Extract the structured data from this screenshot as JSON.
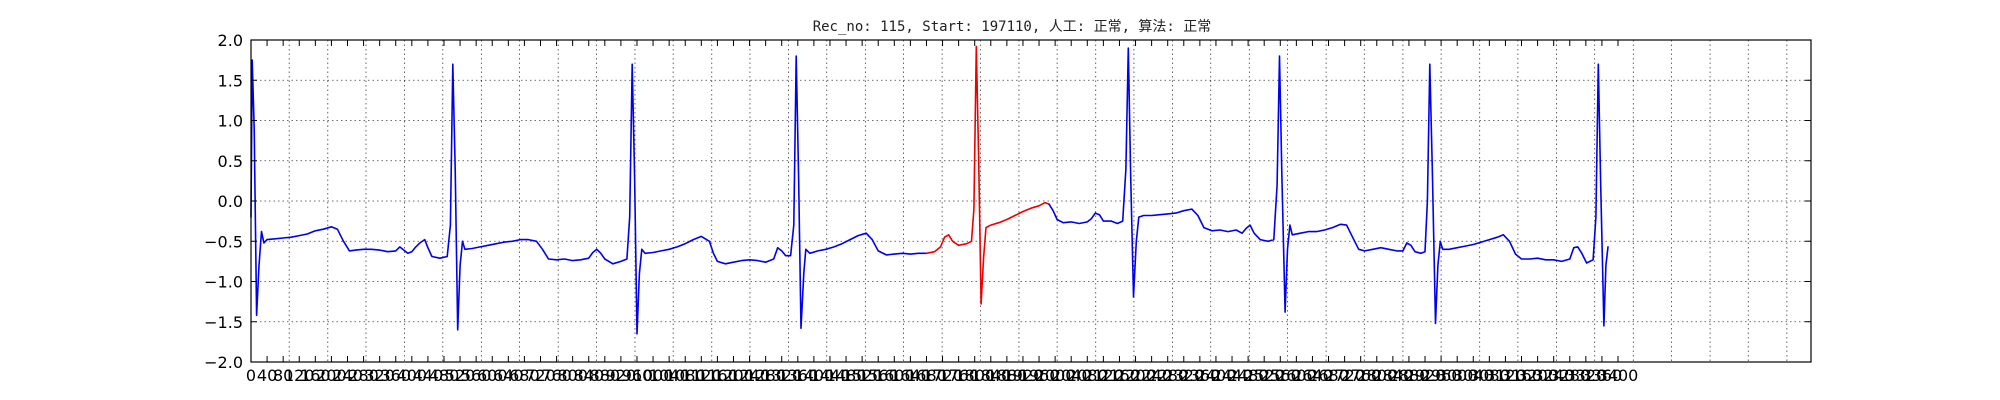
{
  "chart_data": {
    "type": "line",
    "title": "Rec_no: 115, Start: 197110, 人工: 正常, 算法: 正常",
    "xlabel": "",
    "ylabel": "",
    "xlim": [
      0,
      3880
    ],
    "ylim": [
      -2.0,
      2.0
    ],
    "grid": true,
    "yticks": [
      -2.0,
      -1.5,
      -1.0,
      -0.5,
      0.0,
      0.5,
      1.0,
      1.5,
      2.0
    ],
    "ytick_labels": [
      "−2.0",
      "−1.5",
      "−1.0",
      "−0.5",
      "0.0",
      "0.5",
      "1.0",
      "1.5",
      "2.0"
    ],
    "xticks": [
      0,
      40,
      80,
      120,
      160,
      200,
      240,
      280,
      320,
      360,
      400,
      440,
      480,
      520,
      560,
      600,
      640,
      680,
      720,
      760,
      800,
      840,
      880,
      920,
      960,
      1000,
      1040,
      1080,
      1120,
      1160,
      1200,
      1240,
      1280,
      1320,
      1360,
      1400,
      1440,
      1480,
      1520,
      1560,
      1600,
      1640,
      1680,
      1720,
      1760,
      1800,
      1840,
      1880,
      1920,
      1960,
      2000,
      2040,
      2080,
      2120,
      2160,
      2200,
      2240,
      2280,
      2320,
      2360,
      2400,
      2440,
      2480,
      2520,
      2560,
      2600,
      2640,
      2680,
      2720,
      2760,
      2800,
      2840,
      2880,
      2920,
      2960,
      3000,
      3040,
      3080,
      3120,
      3160,
      3200,
      3240,
      3280,
      3320,
      3360,
      3400
    ],
    "xtick_labels": [
      "0",
      "40",
      "80",
      "120",
      "160",
      "200",
      "240",
      "280",
      "320",
      "360",
      "400",
      "440",
      "480",
      "520",
      "560",
      "600",
      "640",
      "680",
      "720",
      "760",
      "800",
      "840",
      "880",
      "920",
      "960",
      "1000",
      "1040",
      "1080",
      "1120",
      "1160",
      "1200",
      "1240",
      "1280",
      "1320",
      "1360",
      "1400",
      "1440",
      "1480",
      "1520",
      "1560",
      "1600",
      "1640",
      "1680",
      "1720",
      "1760",
      "1800",
      "1840",
      "1880",
      "1920",
      "1960",
      "2000",
      "2040",
      "2080",
      "2120",
      "2160",
      "2200",
      "2240",
      "2280",
      "2320",
      "2360",
      "2400",
      "2440",
      "2480",
      "2520",
      "2560",
      "2600",
      "2640",
      "2680",
      "2720",
      "2760",
      "2800",
      "2840",
      "2880",
      "2920",
      "2960",
      "3000",
      "3040",
      "3080",
      "3120",
      "3160",
      "3200",
      "3240",
      "3280",
      "3320",
      "3360",
      "3400"
    ],
    "xgrid": [
      0,
      95,
      191,
      286,
      382,
      477,
      573,
      668,
      764,
      859,
      955,
      1050,
      1146,
      1241,
      1337,
      1432,
      1528,
      1623,
      1719,
      1814,
      1910,
      2005,
      2101,
      2196,
      2292,
      2387,
      2483,
      2578,
      2674,
      2769,
      2865,
      2960,
      3056,
      3151,
      3247,
      3342,
      3438,
      3533,
      3629,
      3724,
      3820
    ],
    "series": [
      {
        "color": "#0000ee",
        "points": [
          [
            0,
            -0.2
          ],
          [
            3,
            1.75
          ],
          [
            8,
            0.9
          ],
          [
            14,
            -1.42
          ],
          [
            20,
            -0.8
          ],
          [
            26,
            -0.38
          ],
          [
            32,
            -0.52
          ],
          [
            40,
            -0.48
          ],
          [
            60,
            -0.47
          ],
          [
            80,
            -0.46
          ],
          [
            100,
            -0.45
          ],
          [
            120,
            -0.43
          ],
          [
            140,
            -0.41
          ],
          [
            160,
            -0.37
          ],
          [
            180,
            -0.35
          ],
          [
            200,
            -0.32
          ],
          [
            215,
            -0.35
          ],
          [
            230,
            -0.5
          ],
          [
            245,
            -0.62
          ],
          [
            260,
            -0.61
          ],
          [
            280,
            -0.6
          ],
          [
            300,
            -0.6
          ],
          [
            320,
            -0.61
          ],
          [
            340,
            -0.63
          ],
          [
            360,
            -0.62
          ],
          [
            370,
            -0.57
          ],
          [
            380,
            -0.61
          ],
          [
            390,
            -0.65
          ],
          [
            400,
            -0.63
          ],
          [
            410,
            -0.57
          ],
          [
            420,
            -0.52
          ],
          [
            432,
            -0.48
          ],
          [
            440,
            -0.58
          ],
          [
            450,
            -0.69
          ],
          [
            470,
            -0.71
          ],
          [
            488,
            -0.69
          ],
          [
            496,
            -0.3
          ],
          [
            502,
            1.7
          ],
          [
            508,
            0.4
          ],
          [
            514,
            -1.6
          ],
          [
            520,
            -0.8
          ],
          [
            526,
            -0.5
          ],
          [
            532,
            -0.6
          ],
          [
            550,
            -0.59
          ],
          [
            570,
            -0.57
          ],
          [
            590,
            -0.55
          ],
          [
            610,
            -0.53
          ],
          [
            630,
            -0.51
          ],
          [
            650,
            -0.5
          ],
          [
            670,
            -0.48
          ],
          [
            690,
            -0.48
          ],
          [
            710,
            -0.5
          ],
          [
            725,
            -0.6
          ],
          [
            740,
            -0.72
          ],
          [
            760,
            -0.73
          ],
          [
            780,
            -0.72
          ],
          [
            800,
            -0.74
          ],
          [
            820,
            -0.73
          ],
          [
            840,
            -0.71
          ],
          [
            850,
            -0.64
          ],
          [
            860,
            -0.6
          ],
          [
            870,
            -0.65
          ],
          [
            880,
            -0.72
          ],
          [
            900,
            -0.78
          ],
          [
            920,
            -0.75
          ],
          [
            935,
            -0.72
          ],
          [
            942,
            -0.2
          ],
          [
            948,
            1.7
          ],
          [
            954,
            0.3
          ],
          [
            960,
            -1.65
          ],
          [
            966,
            -0.9
          ],
          [
            972,
            -0.6
          ],
          [
            980,
            -0.65
          ],
          [
            1000,
            -0.64
          ],
          [
            1020,
            -0.62
          ],
          [
            1040,
            -0.6
          ],
          [
            1060,
            -0.57
          ],
          [
            1080,
            -0.53
          ],
          [
            1100,
            -0.48
          ],
          [
            1120,
            -0.44
          ],
          [
            1140,
            -0.5
          ],
          [
            1150,
            -0.65
          ],
          [
            1160,
            -0.75
          ],
          [
            1180,
            -0.78
          ],
          [
            1200,
            -0.76
          ],
          [
            1220,
            -0.74
          ],
          [
            1240,
            -0.73
          ],
          [
            1260,
            -0.74
          ],
          [
            1280,
            -0.76
          ],
          [
            1300,
            -0.72
          ],
          [
            1310,
            -0.58
          ],
          [
            1320,
            -0.62
          ],
          [
            1330,
            -0.68
          ],
          [
            1342,
            -0.68
          ],
          [
            1350,
            -0.3
          ],
          [
            1356,
            1.8
          ],
          [
            1362,
            0.3
          ],
          [
            1368,
            -1.58
          ],
          [
            1375,
            -0.9
          ],
          [
            1380,
            -0.6
          ],
          [
            1390,
            -0.65
          ],
          [
            1410,
            -0.62
          ],
          [
            1430,
            -0.6
          ],
          [
            1450,
            -0.57
          ],
          [
            1470,
            -0.53
          ],
          [
            1490,
            -0.48
          ],
          [
            1510,
            -0.43
          ],
          [
            1530,
            -0.4
          ],
          [
            1545,
            -0.48
          ],
          [
            1560,
            -0.62
          ],
          [
            1580,
            -0.67
          ],
          [
            1600,
            -0.66
          ],
          [
            1620,
            -0.65
          ],
          [
            1640,
            -0.66
          ],
          [
            1660,
            -0.65
          ],
          [
            1680,
            -0.65
          ]
        ]
      },
      {
        "color": "#ee0000",
        "points": [
          [
            1680,
            -0.65
          ],
          [
            1700,
            -0.63
          ],
          [
            1715,
            -0.57
          ],
          [
            1725,
            -0.45
          ],
          [
            1735,
            -0.42
          ],
          [
            1745,
            -0.5
          ],
          [
            1760,
            -0.55
          ],
          [
            1780,
            -0.53
          ],
          [
            1792,
            -0.5
          ],
          [
            1798,
            -0.1
          ],
          [
            1804,
            1.92
          ],
          [
            1810,
            0.5
          ],
          [
            1816,
            -1.28
          ],
          [
            1822,
            -0.7
          ],
          [
            1828,
            -0.33
          ],
          [
            1840,
            -0.3
          ],
          [
            1860,
            -0.27
          ],
          [
            1880,
            -0.23
          ],
          [
            1900,
            -0.18
          ],
          [
            1920,
            -0.13
          ],
          [
            1940,
            -0.09
          ],
          [
            1960,
            -0.06
          ],
          [
            1975,
            -0.02
          ],
          [
            1985,
            -0.04
          ]
        ]
      },
      {
        "color": "#0000ee",
        "points": [
          [
            1985,
            -0.04
          ],
          [
            1995,
            -0.12
          ],
          [
            2005,
            -0.23
          ],
          [
            2020,
            -0.27
          ],
          [
            2040,
            -0.26
          ],
          [
            2060,
            -0.28
          ],
          [
            2080,
            -0.26
          ],
          [
            2090,
            -0.22
          ],
          [
            2100,
            -0.15
          ],
          [
            2110,
            -0.17
          ],
          [
            2120,
            -0.25
          ],
          [
            2140,
            -0.25
          ],
          [
            2155,
            -0.28
          ],
          [
            2168,
            -0.25
          ],
          [
            2176,
            0.4
          ],
          [
            2182,
            1.9
          ],
          [
            2188,
            0.3
          ],
          [
            2195,
            -1.19
          ],
          [
            2202,
            -0.5
          ],
          [
            2208,
            -0.2
          ],
          [
            2220,
            -0.18
          ],
          [
            2240,
            -0.18
          ],
          [
            2260,
            -0.17
          ],
          [
            2280,
            -0.16
          ],
          [
            2300,
            -0.15
          ],
          [
            2320,
            -0.12
          ],
          [
            2340,
            -0.1
          ],
          [
            2355,
            -0.18
          ],
          [
            2370,
            -0.33
          ],
          [
            2390,
            -0.37
          ],
          [
            2410,
            -0.36
          ],
          [
            2430,
            -0.38
          ],
          [
            2450,
            -0.36
          ],
          [
            2465,
            -0.4
          ],
          [
            2475,
            -0.34
          ],
          [
            2485,
            -0.3
          ],
          [
            2495,
            -0.4
          ],
          [
            2510,
            -0.48
          ],
          [
            2530,
            -0.5
          ],
          [
            2544,
            -0.48
          ],
          [
            2552,
            0.2
          ],
          [
            2558,
            1.8
          ],
          [
            2564,
            0.3
          ],
          [
            2572,
            -1.38
          ],
          [
            2578,
            -0.6
          ],
          [
            2584,
            -0.3
          ],
          [
            2590,
            -0.42
          ],
          [
            2610,
            -0.4
          ],
          [
            2630,
            -0.38
          ],
          [
            2650,
            -0.38
          ],
          [
            2670,
            -0.36
          ],
          [
            2690,
            -0.33
          ],
          [
            2710,
            -0.29
          ],
          [
            2725,
            -0.3
          ],
          [
            2740,
            -0.45
          ],
          [
            2755,
            -0.6
          ],
          [
            2770,
            -0.62
          ],
          [
            2790,
            -0.6
          ],
          [
            2810,
            -0.58
          ],
          [
            2830,
            -0.6
          ],
          [
            2850,
            -0.62
          ],
          [
            2865,
            -0.62
          ],
          [
            2875,
            -0.52
          ],
          [
            2885,
            -0.55
          ],
          [
            2895,
            -0.63
          ],
          [
            2910,
            -0.65
          ],
          [
            2920,
            -0.63
          ],
          [
            2926,
            0.0
          ],
          [
            2932,
            1.7
          ],
          [
            2938,
            0.4
          ],
          [
            2946,
            -1.52
          ],
          [
            2952,
            -0.8
          ],
          [
            2958,
            -0.5
          ],
          [
            2964,
            -0.6
          ],
          [
            2980,
            -0.6
          ],
          [
            3000,
            -0.58
          ],
          [
            3020,
            -0.56
          ],
          [
            3040,
            -0.54
          ],
          [
            3060,
            -0.51
          ],
          [
            3080,
            -0.48
          ],
          [
            3100,
            -0.45
          ],
          [
            3115,
            -0.42
          ],
          [
            3130,
            -0.5
          ],
          [
            3145,
            -0.66
          ],
          [
            3160,
            -0.72
          ],
          [
            3180,
            -0.72
          ],
          [
            3200,
            -0.71
          ],
          [
            3220,
            -0.73
          ],
          [
            3240,
            -0.73
          ],
          [
            3260,
            -0.75
          ],
          [
            3280,
            -0.72
          ],
          [
            3290,
            -0.58
          ],
          [
            3300,
            -0.57
          ],
          [
            3310,
            -0.65
          ],
          [
            3322,
            -0.77
          ],
          [
            3338,
            -0.73
          ],
          [
            3345,
            -0.2
          ],
          [
            3351,
            1.7
          ],
          [
            3357,
            0.2
          ],
          [
            3365,
            -1.55
          ],
          [
            3370,
            -0.8
          ],
          [
            3375,
            -0.57
          ]
        ]
      }
    ]
  }
}
